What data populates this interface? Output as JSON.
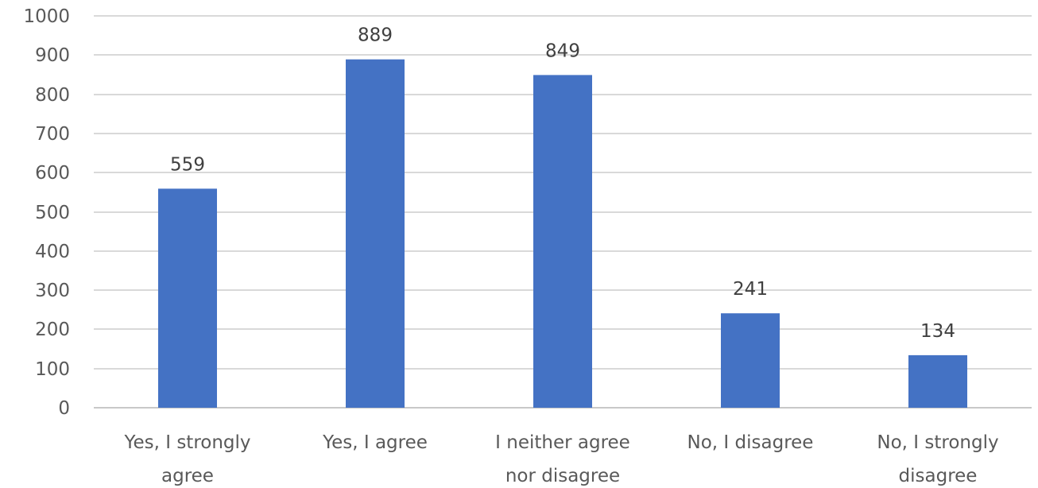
{
  "chart_data": {
    "type": "bar",
    "categories": [
      [
        "Yes, I strongly",
        "agree"
      ],
      [
        "Yes, I agree"
      ],
      [
        "I neither agree",
        "nor disagree"
      ],
      [
        "No, I disagree"
      ],
      [
        "No, I strongly",
        "disagree"
      ]
    ],
    "values": [
      559,
      889,
      849,
      241,
      134
    ],
    "data_labels": [
      "559",
      "889",
      "849",
      "241",
      "134"
    ],
    "ylim": [
      0,
      1000
    ],
    "yticks": [
      0,
      100,
      200,
      300,
      400,
      500,
      600,
      700,
      800,
      900,
      1000
    ],
    "grid": true,
    "bar_color": "#4472c4"
  }
}
